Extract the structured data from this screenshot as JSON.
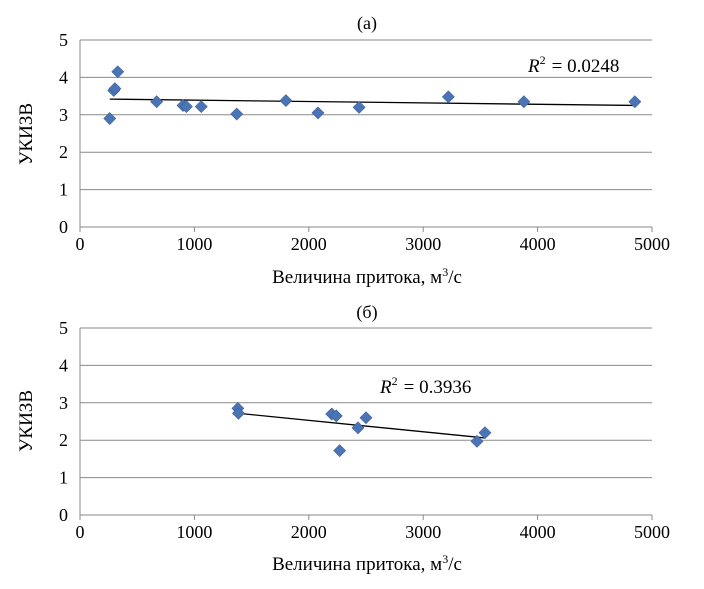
{
  "chart_data": [
    {
      "type": "scatter",
      "panel": "a",
      "title": "(а)",
      "xlabel": "Величина притока, м³/с",
      "xlabel_main": "Величина притока, м",
      "xlabel_sup": "3",
      "xlabel_tail": "/с",
      "ylabel": "УКИЗВ",
      "xlim": [
        0,
        5000
      ],
      "ylim": [
        0,
        5
      ],
      "xticks": [
        "0",
        "1000",
        "2000",
        "3000",
        "4000",
        "5000"
      ],
      "yticks": [
        "0",
        "1",
        "2",
        "3",
        "4",
        "5"
      ],
      "points": [
        {
          "x": 260,
          "y": 2.9
        },
        {
          "x": 295,
          "y": 3.65
        },
        {
          "x": 305,
          "y": 3.7
        },
        {
          "x": 330,
          "y": 4.15
        },
        {
          "x": 670,
          "y": 3.35
        },
        {
          "x": 900,
          "y": 3.25
        },
        {
          "x": 930,
          "y": 3.22
        },
        {
          "x": 1060,
          "y": 3.22
        },
        {
          "x": 1370,
          "y": 3.02
        },
        {
          "x": 1800,
          "y": 3.38
        },
        {
          "x": 2080,
          "y": 3.05
        },
        {
          "x": 2440,
          "y": 3.2
        },
        {
          "x": 3220,
          "y": 3.48
        },
        {
          "x": 3880,
          "y": 3.35
        },
        {
          "x": 4850,
          "y": 3.35
        }
      ],
      "trendline": {
        "x1": 260,
        "y1": 3.42,
        "x2": 4850,
        "y2": 3.25
      },
      "r2_label": "R",
      "r2_sup": "2",
      "r2_value": "= 0.0248"
    },
    {
      "type": "scatter",
      "panel": "б",
      "title": "(б)",
      "xlabel": "Величина притока, м³/с",
      "xlabel_main": "Величина притока, м",
      "xlabel_sup": "3",
      "xlabel_tail": "/с",
      "ylabel": "УКИЗВ",
      "xlim": [
        0,
        5000
      ],
      "ylim": [
        0,
        5
      ],
      "xticks": [
        "0",
        "1000",
        "2000",
        "3000",
        "4000",
        "5000"
      ],
      "yticks": [
        "0",
        "1",
        "2",
        "3",
        "4",
        "5"
      ],
      "points": [
        {
          "x": 1380,
          "y": 2.85
        },
        {
          "x": 1385,
          "y": 2.72
        },
        {
          "x": 2200,
          "y": 2.7
        },
        {
          "x": 2240,
          "y": 2.65
        },
        {
          "x": 2270,
          "y": 1.72
        },
        {
          "x": 2430,
          "y": 2.33
        },
        {
          "x": 2500,
          "y": 2.6
        },
        {
          "x": 3470,
          "y": 1.97
        },
        {
          "x": 3540,
          "y": 2.2
        }
      ],
      "trendline": {
        "x1": 1380,
        "y1": 2.72,
        "x2": 3540,
        "y2": 2.06
      },
      "r2_label": "R",
      "r2_sup": "2",
      "r2_value": "= 0.3936"
    }
  ]
}
